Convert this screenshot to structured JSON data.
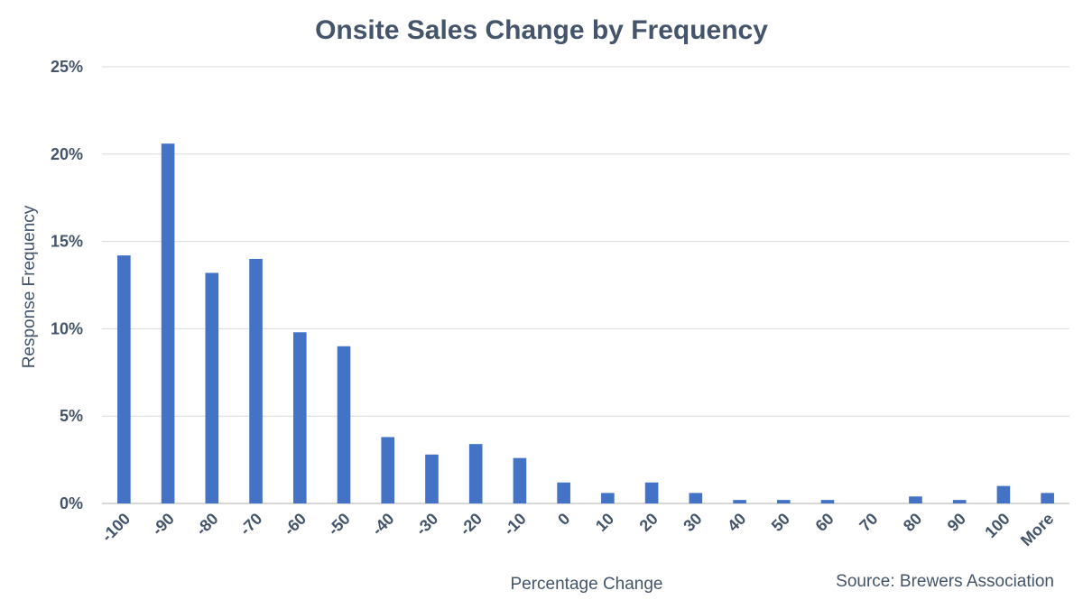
{
  "chart_data": {
    "type": "bar",
    "title": "Onsite Sales Change by Frequency",
    "xlabel": "Percentage Change",
    "ylabel": "Response Frequency",
    "source": "Source: Brewers Association",
    "categories": [
      "-100",
      "-90",
      "-80",
      "-70",
      "-60",
      "-50",
      "-40",
      "-30",
      "-20",
      "-10",
      "0",
      "10",
      "20",
      "30",
      "40",
      "50",
      "60",
      "70",
      "80",
      "90",
      "100",
      "More"
    ],
    "values": [
      14.2,
      20.6,
      13.2,
      14.0,
      9.8,
      9.0,
      3.8,
      2.8,
      3.4,
      2.6,
      1.2,
      0.6,
      1.2,
      0.6,
      0.2,
      0.2,
      0.2,
      0.0,
      0.4,
      0.2,
      1.0,
      0.6
    ],
    "ylim": [
      0,
      25
    ],
    "yticks": [
      "0%",
      "5%",
      "10%",
      "15%",
      "20%",
      "25%"
    ],
    "grid": true,
    "bar_color": "#4472c4"
  }
}
